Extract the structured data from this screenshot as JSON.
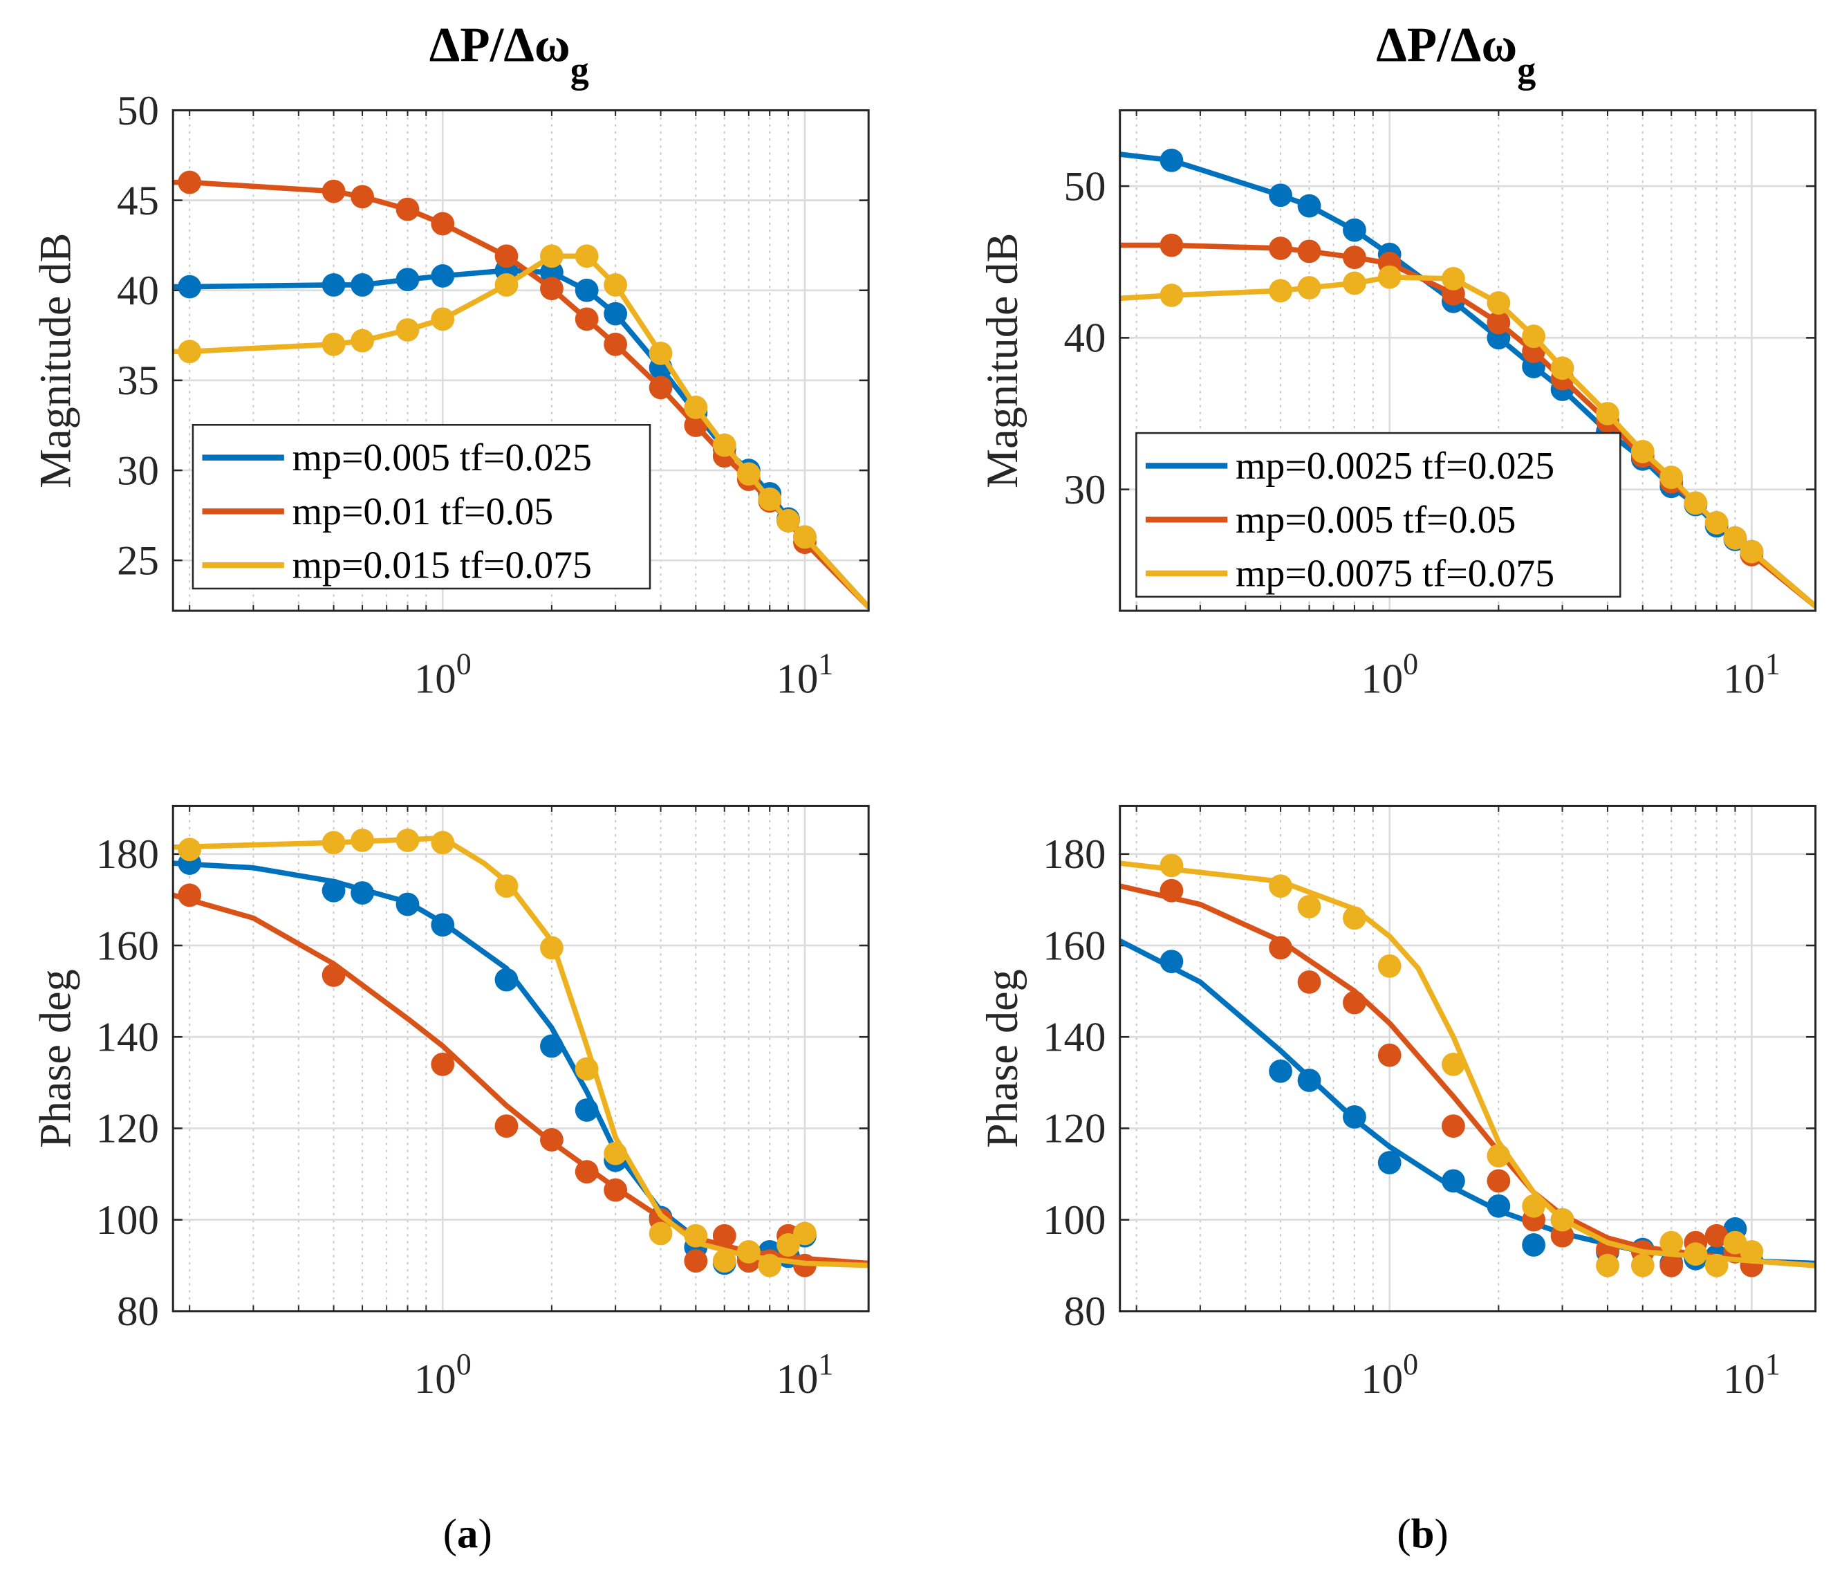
{
  "colors": {
    "series1": "#0072BD",
    "series2": "#D95319",
    "series3": "#EDB120"
  },
  "panels": [
    {
      "label_open": "(",
      "label": "a",
      "label_close": ")"
    },
    {
      "label_open": "(",
      "label": "b",
      "label_close": ")"
    }
  ],
  "chart_data": [
    {
      "type": "line",
      "panel": "a",
      "title": "ΔP/Δω",
      "title_sub": "g",
      "xlabel": "",
      "ylabel": "Magnitude dB",
      "xscale": "log",
      "xlim": [
        0.18,
        15
      ],
      "ylim": [
        22.2,
        50
      ],
      "grid": true,
      "legend_position": "bottom-left",
      "xticks": [
        {
          "base": "10",
          "exp": "0",
          "value": 1
        },
        {
          "base": "10",
          "exp": "1",
          "value": 10
        }
      ],
      "yticks": [
        25,
        30,
        35,
        40,
        45,
        50
      ],
      "series": [
        {
          "name": "mp=0.005 tf=0.025",
          "x": [
            0.2,
            0.5,
            0.6,
            0.8,
            1,
            1.5,
            2,
            2.5,
            3,
            4,
            5,
            6,
            7,
            8,
            9,
            10
          ],
          "y": [
            40.2,
            40.3,
            40.3,
            40.6,
            40.8,
            41.1,
            41.0,
            40.0,
            38.7,
            35.7,
            33.2,
            31.2,
            30.0,
            28.7,
            27.3,
            26.3
          ],
          "curve_x": [
            0.18,
            0.2,
            0.5,
            0.6,
            0.8,
            1,
            1.5,
            2,
            2.5,
            3,
            4,
            5,
            6,
            7,
            8,
            9,
            10,
            15
          ],
          "curve_y": [
            40.2,
            40.2,
            40.3,
            40.3,
            40.6,
            40.8,
            41.1,
            41.0,
            40.0,
            38.7,
            35.7,
            33.2,
            31.2,
            30.0,
            28.7,
            27.3,
            26.3,
            22.4
          ]
        },
        {
          "name": "mp=0.01 tf=0.05",
          "x": [
            0.2,
            0.5,
            0.6,
            0.8,
            1,
            1.5,
            2,
            2.5,
            3,
            4,
            5,
            6,
            7,
            8,
            9,
            10
          ],
          "y": [
            46.0,
            45.5,
            45.2,
            44.5,
            43.7,
            41.9,
            40.1,
            38.4,
            37.0,
            34.6,
            32.5,
            30.8,
            29.5,
            28.3,
            27.2,
            26.0
          ],
          "curve_x": [
            0.18,
            0.2,
            0.5,
            0.6,
            0.8,
            1,
            1.5,
            2,
            2.5,
            3,
            4,
            5,
            6,
            7,
            8,
            9,
            10,
            15
          ],
          "curve_y": [
            46.0,
            46.0,
            45.5,
            45.2,
            44.5,
            43.7,
            41.9,
            40.1,
            38.4,
            37.0,
            34.6,
            32.5,
            30.8,
            29.5,
            28.3,
            27.2,
            26.0,
            22.4
          ]
        },
        {
          "name": "mp=0.015 tf=0.075",
          "x": [
            0.2,
            0.5,
            0.6,
            0.8,
            1,
            1.5,
            2,
            2.5,
            3,
            4,
            5,
            6,
            7,
            8,
            9,
            10
          ],
          "y": [
            36.6,
            37.0,
            37.2,
            37.8,
            38.4,
            40.3,
            41.9,
            41.9,
            40.3,
            36.5,
            33.5,
            31.4,
            29.8,
            28.4,
            27.2,
            26.3
          ],
          "curve_x": [
            0.18,
            0.2,
            0.5,
            0.6,
            0.8,
            1,
            1.5,
            2,
            2.5,
            3,
            4,
            5,
            6,
            7,
            8,
            9,
            10,
            15
          ],
          "curve_y": [
            36.6,
            36.6,
            37.0,
            37.2,
            37.8,
            38.4,
            40.3,
            41.9,
            41.9,
            40.3,
            36.5,
            33.5,
            31.4,
            29.8,
            28.4,
            27.2,
            26.3,
            22.4
          ]
        }
      ]
    },
    {
      "type": "line",
      "panel": "b",
      "title": "ΔP/Δω",
      "title_sub": "g",
      "xlabel": "",
      "ylabel": "Magnitude dB",
      "xscale": "log",
      "xlim": [
        0.18,
        15
      ],
      "ylim": [
        22,
        55
      ],
      "grid": true,
      "legend_position": "bottom-left",
      "xticks": [
        {
          "base": "10",
          "exp": "0",
          "value": 1
        },
        {
          "base": "10",
          "exp": "1",
          "value": 10
        }
      ],
      "yticks": [
        30,
        40,
        50
      ],
      "series": [
        {
          "name": "mp=0.0025 tf=0.025",
          "x": [
            0.25,
            0.5,
            0.6,
            0.8,
            1,
            1.5,
            2,
            2.5,
            3,
            4,
            5,
            6,
            7,
            8,
            9,
            10
          ],
          "y": [
            51.7,
            49.4,
            48.7,
            47.1,
            45.5,
            42.4,
            40.0,
            38.1,
            36.6,
            33.8,
            32.0,
            30.2,
            29.0,
            27.6,
            26.7,
            25.9
          ],
          "curve_x": [
            0.18,
            0.25,
            0.5,
            0.6,
            0.8,
            1,
            1.5,
            2,
            2.5,
            3,
            4,
            5,
            6,
            7,
            8,
            9,
            10,
            15
          ],
          "curve_y": [
            52.1,
            51.7,
            49.4,
            48.7,
            47.1,
            45.5,
            42.4,
            40.0,
            38.1,
            36.6,
            33.8,
            32.0,
            30.2,
            29.0,
            27.6,
            26.7,
            25.9,
            22.3
          ]
        },
        {
          "name": "mp=0.005 tf=0.05",
          "x": [
            0.25,
            0.5,
            0.6,
            0.8,
            1,
            1.5,
            2,
            2.5,
            3,
            4,
            5,
            6,
            7,
            8,
            9,
            10
          ],
          "y": [
            46.1,
            45.9,
            45.7,
            45.3,
            44.9,
            42.9,
            41.0,
            39.1,
            37.3,
            34.5,
            32.2,
            30.5,
            29.1,
            27.8,
            26.8,
            25.7
          ],
          "curve_x": [
            0.18,
            0.25,
            0.5,
            0.6,
            0.8,
            1,
            1.5,
            2,
            2.5,
            3,
            4,
            5,
            6,
            7,
            8,
            9,
            10,
            15
          ],
          "curve_y": [
            46.1,
            46.1,
            45.9,
            45.7,
            45.3,
            44.9,
            42.9,
            41.0,
            39.1,
            37.3,
            34.5,
            32.2,
            30.5,
            29.1,
            27.8,
            26.8,
            25.7,
            22.3
          ]
        },
        {
          "name": "mp=0.0075 tf=0.075",
          "x": [
            0.25,
            0.5,
            0.6,
            0.8,
            1,
            1.5,
            2,
            2.5,
            3,
            4,
            5,
            6,
            7,
            8,
            9,
            10
          ],
          "y": [
            42.8,
            43.1,
            43.3,
            43.6,
            44.0,
            43.9,
            42.3,
            40.1,
            38.0,
            35.0,
            32.5,
            30.8,
            29.1,
            27.8,
            26.8,
            25.9
          ],
          "curve_x": [
            0.18,
            0.25,
            0.5,
            0.6,
            0.8,
            1,
            1.5,
            2,
            2.5,
            3,
            4,
            5,
            6,
            7,
            8,
            9,
            10,
            15
          ],
          "curve_y": [
            42.6,
            42.8,
            43.1,
            43.3,
            43.6,
            44.0,
            43.9,
            42.3,
            40.1,
            38.0,
            35.0,
            32.5,
            30.8,
            29.1,
            27.8,
            26.8,
            25.9,
            22.3
          ]
        }
      ]
    },
    {
      "type": "line",
      "panel": "a",
      "title": "",
      "xlabel": "",
      "ylabel": "Phase deg",
      "xscale": "log",
      "xlim": [
        0.18,
        15
      ],
      "ylim": [
        80,
        190.5
      ],
      "grid": true,
      "xticks": [
        {
          "base": "10",
          "exp": "0",
          "value": 1
        },
        {
          "base": "10",
          "exp": "1",
          "value": 10
        }
      ],
      "yticks": [
        80,
        100,
        120,
        140,
        160,
        180
      ],
      "series": [
        {
          "name": "mp=0.005 tf=0.025",
          "x": [
            0.2,
            0.5,
            0.6,
            0.8,
            1,
            1.5,
            2,
            2.5,
            3,
            4,
            5,
            6,
            7,
            8,
            9,
            10
          ],
          "y": [
            178,
            172,
            171.5,
            169,
            164.5,
            152.5,
            138,
            124,
            113,
            100.5,
            94,
            90.5,
            92,
            93,
            92,
            96.5
          ],
          "curve_x": [
            0.18,
            0.3,
            0.5,
            0.8,
            1,
            1.5,
            2,
            2.5,
            3,
            4,
            5,
            7,
            10,
            15
          ],
          "curve_y": [
            178,
            177,
            174,
            169.5,
            165,
            155,
            142,
            128,
            115,
            102,
            96,
            92.5,
            91,
            90.5
          ]
        },
        {
          "name": "mp=0.01 tf=0.05",
          "x": [
            0.2,
            0.5,
            1,
            1.5,
            2,
            2.5,
            3,
            4,
            5,
            6,
            7,
            8,
            9,
            10
          ],
          "y": [
            171,
            153.5,
            134,
            120.5,
            117.5,
            110.5,
            106.5,
            100,
            91,
            96.5,
            91,
            91,
            96.5,
            90
          ],
          "curve_x": [
            0.18,
            0.3,
            0.5,
            0.8,
            1,
            1.5,
            2,
            3,
            4,
            5,
            7,
            10,
            15
          ],
          "curve_y": [
            171,
            166,
            156,
            144,
            138,
            125,
            117,
            107,
            100.5,
            96,
            93,
            91.5,
            90.5
          ]
        },
        {
          "name": "mp=0.015 tf=0.075",
          "x": [
            0.2,
            0.5,
            0.6,
            0.8,
            1,
            1.5,
            2,
            2.5,
            3,
            4,
            5,
            6,
            7,
            8,
            9,
            10
          ],
          "y": [
            181,
            182.5,
            183,
            183,
            182.5,
            173,
            159.5,
            133,
            114.5,
            97,
            96.5,
            91,
            93,
            90,
            94.5,
            97
          ],
          "curve_x": [
            0.18,
            0.5,
            1,
            1.3,
            1.5,
            2,
            2.5,
            3,
            4,
            5,
            7,
            10,
            15
          ],
          "curve_y": [
            181.5,
            182.5,
            183.5,
            178,
            174,
            161,
            138,
            118,
            101,
            95,
            92,
            90.5,
            90
          ]
        }
      ]
    },
    {
      "type": "line",
      "panel": "b",
      "title": "",
      "xlabel": "",
      "ylabel": "Phase deg",
      "xscale": "log",
      "xlim": [
        0.18,
        15
      ],
      "ylim": [
        80,
        190.5
      ],
      "grid": true,
      "xticks": [
        {
          "base": "10",
          "exp": "0",
          "value": 1
        },
        {
          "base": "10",
          "exp": "1",
          "value": 10
        }
      ],
      "yticks": [
        80,
        100,
        120,
        140,
        160,
        180
      ],
      "series": [
        {
          "name": "mp=0.0025 tf=0.025",
          "x": [
            0.25,
            0.5,
            0.6,
            0.8,
            1,
            1.5,
            2,
            2.5,
            3,
            4,
            5,
            6,
            7,
            8,
            9,
            10
          ],
          "y": [
            156.5,
            132.5,
            130.5,
            122.5,
            112.5,
            108.5,
            103,
            94.5,
            100,
            93,
            93.5,
            90.5,
            91.5,
            92,
            98,
            91
          ],
          "curve_x": [
            0.18,
            0.3,
            0.5,
            0.8,
            1,
            1.5,
            2,
            3,
            5,
            10,
            15
          ],
          "curve_y": [
            161,
            152,
            137,
            122,
            116,
            107,
            102,
            97,
            93,
            91,
            90.5
          ]
        },
        {
          "name": "mp=0.005 tf=0.05",
          "x": [
            0.25,
            0.5,
            0.6,
            0.8,
            1,
            1.5,
            2,
            2.5,
            3,
            4,
            5,
            6,
            7,
            8,
            9,
            10
          ],
          "y": [
            172,
            159.5,
            152,
            147.5,
            136,
            120.5,
            108.5,
            100,
            96.5,
            93.5,
            93,
            90,
            95,
            96.5,
            93,
            90
          ],
          "curve_x": [
            0.18,
            0.3,
            0.5,
            0.8,
            1,
            1.5,
            2,
            2.5,
            3,
            4,
            5,
            10,
            15
          ],
          "curve_y": [
            173,
            169,
            161,
            150,
            143,
            127,
            115,
            106,
            101,
            96,
            94,
            91,
            90
          ]
        },
        {
          "name": "mp=0.0075 tf=0.075",
          "x": [
            0.25,
            0.5,
            0.6,
            0.8,
            1,
            1.5,
            2,
            2.5,
            3,
            4,
            5,
            6,
            7,
            8,
            9,
            10
          ],
          "y": [
            177.5,
            173,
            168.5,
            166,
            155.5,
            134,
            114,
            103,
            100,
            90,
            90,
            95,
            92.5,
            90,
            95,
            93
          ],
          "curve_x": [
            0.18,
            0.5,
            0.8,
            1,
            1.2,
            1.5,
            2,
            2.5,
            3,
            4,
            5,
            10,
            15
          ],
          "curve_y": [
            178,
            174,
            168,
            162,
            155,
            140,
            117,
            106,
            100,
            95,
            93,
            91,
            90
          ]
        }
      ]
    }
  ]
}
